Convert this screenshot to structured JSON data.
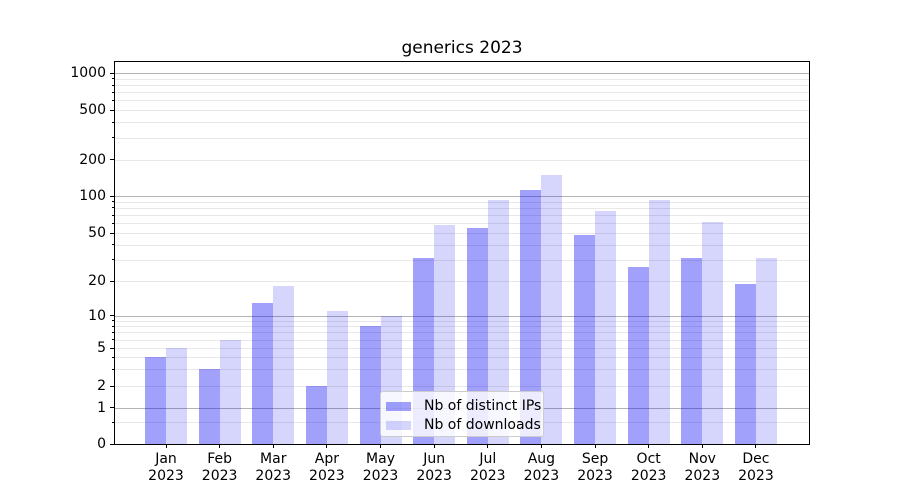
{
  "title": "generics 2023",
  "legend": {
    "items": [
      {
        "label": "Nb of distinct IPs",
        "series": "ips"
      },
      {
        "label": "Nb of downloads",
        "series": "downloads"
      }
    ]
  },
  "yaxis": {
    "ticks": [
      {
        "label": "1000",
        "value": 1000
      },
      {
        "label": "500",
        "value": 500
      },
      {
        "label": "200",
        "value": 200
      },
      {
        "label": "100",
        "value": 100
      },
      {
        "label": "50",
        "value": 50
      },
      {
        "label": "20",
        "value": 20
      },
      {
        "label": "10",
        "value": 10
      },
      {
        "label": "5",
        "value": 5
      },
      {
        "label": "2",
        "value": 2
      },
      {
        "label": "1",
        "value": 1
      },
      {
        "label": "0",
        "value": 0
      }
    ],
    "major_grid_values": [
      1,
      10,
      100,
      1000
    ],
    "minor_grid_values": [
      0.6,
      3,
      4,
      6,
      7,
      8,
      9,
      30,
      40,
      60,
      70,
      80,
      90,
      300,
      400,
      600,
      700,
      800,
      900
    ]
  },
  "xaxis": {
    "categories": [
      {
        "month": "Jan",
        "year": "2023"
      },
      {
        "month": "Feb",
        "year": "2023"
      },
      {
        "month": "Mar",
        "year": "2023"
      },
      {
        "month": "Apr",
        "year": "2023"
      },
      {
        "month": "May",
        "year": "2023"
      },
      {
        "month": "Jun",
        "year": "2023"
      },
      {
        "month": "Jul",
        "year": "2023"
      },
      {
        "month": "Aug",
        "year": "2023"
      },
      {
        "month": "Sep",
        "year": "2023"
      },
      {
        "month": "Oct",
        "year": "2023"
      },
      {
        "month": "Nov",
        "year": "2023"
      },
      {
        "month": "Dec",
        "year": "2023"
      }
    ]
  },
  "colors": {
    "ips_bar": "rgba(0,0,245,0.37)",
    "downloads_bar": "rgba(0,0,245,0.16)",
    "major_grid": "#b3b3b3",
    "minor_grid": "#e8e8e8",
    "spine": "#000000",
    "legend_bg": "rgba(255,255,255,0.8)",
    "legend_border": "#cccccc"
  },
  "chart_data": {
    "type": "bar",
    "title": "generics 2023",
    "categories": [
      "Jan 2023",
      "Feb 2023",
      "Mar 2023",
      "Apr 2023",
      "May 2023",
      "Jun 2023",
      "Jul 2023",
      "Aug 2023",
      "Sep 2023",
      "Oct 2023",
      "Nov 2023",
      "Dec 2023"
    ],
    "series": [
      {
        "name": "Nb of distinct IPs",
        "values": [
          4,
          3,
          13,
          2,
          8,
          31,
          55,
          113,
          48,
          26,
          31,
          19
        ]
      },
      {
        "name": "Nb of downloads",
        "values": [
          5,
          6,
          18,
          11,
          10,
          58,
          92,
          150,
          75,
          92,
          62,
          31
        ]
      }
    ],
    "yscale": "asinh (log-like, compressed below 10, linear below 1)",
    "yticks": [
      0,
      1,
      2,
      5,
      10,
      20,
      50,
      100,
      200,
      500,
      1000
    ],
    "ylim": [
      0,
      1500
    ],
    "grid": true,
    "legend_position": "lower center"
  }
}
